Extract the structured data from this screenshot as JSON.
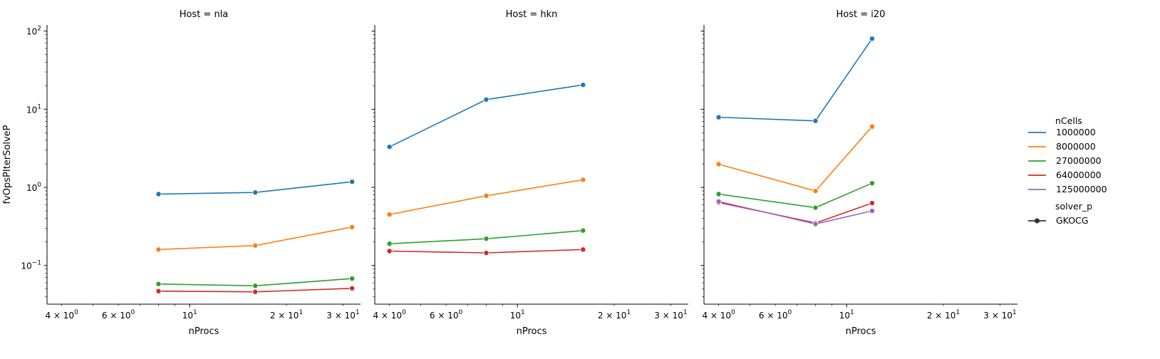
{
  "chart_data": {
    "type": "line",
    "ylabel": "fvOpsPIterSolveP",
    "xlabel": "nProcs",
    "xscale": "log",
    "yscale": "log",
    "xlim": [
      3.6,
      34
    ],
    "ylim": [
      0.032,
      120
    ],
    "x_ticks": [
      {
        "value": 4,
        "label": "4 × 10",
        "sup": "0"
      },
      {
        "value": 6,
        "label": "6 × 10",
        "sup": "0"
      },
      {
        "value": 10,
        "label": "10",
        "sup": "1"
      },
      {
        "value": 20,
        "label": "2 × 10",
        "sup": "1"
      },
      {
        "value": 30,
        "label": "3 × 10",
        "sup": "1"
      }
    ],
    "y_ticks": [
      {
        "value": 0.1,
        "label": "10",
        "sup": "−1"
      },
      {
        "value": 1,
        "label": "10",
        "sup": "0"
      },
      {
        "value": 10,
        "label": "10",
        "sup": "1"
      },
      {
        "value": 100,
        "label": "10",
        "sup": "2"
      }
    ],
    "grid": false,
    "legend_position": "right",
    "legend": {
      "hue_title": "nCells",
      "hue_entries": [
        {
          "name": "1000000",
          "color": "#1f77b4"
        },
        {
          "name": "8000000",
          "color": "#ff7f0e"
        },
        {
          "name": "27000000",
          "color": "#2ca02c"
        },
        {
          "name": "64000000",
          "color": "#d62728"
        },
        {
          "name": "125000000",
          "color": "#9467bd"
        }
      ],
      "style_title": "solver_p",
      "style_entries": [
        {
          "name": "GKOCG",
          "color": "#333333"
        }
      ]
    },
    "panels": [
      {
        "title": "Host = nla",
        "series": [
          {
            "name": "1000000",
            "x": [
              8,
              16,
              32
            ],
            "y": [
              0.82,
              0.86,
              1.18
            ]
          },
          {
            "name": "8000000",
            "x": [
              8,
              16,
              32
            ],
            "y": [
              0.16,
              0.18,
              0.31
            ]
          },
          {
            "name": "27000000",
            "x": [
              8,
              16,
              32
            ],
            "y": [
              0.058,
              0.055,
              0.068
            ]
          },
          {
            "name": "64000000",
            "x": [
              8,
              16,
              32
            ],
            "y": [
              0.047,
              0.046,
              0.051
            ]
          }
        ]
      },
      {
        "title": "Host = hkn",
        "series": [
          {
            "name": "1000000",
            "x": [
              4,
              8,
              16
            ],
            "y": [
              3.3,
              13.3,
              20.5
            ]
          },
          {
            "name": "8000000",
            "x": [
              4,
              8,
              16
            ],
            "y": [
              0.45,
              0.78,
              1.25
            ]
          },
          {
            "name": "27000000",
            "x": [
              4,
              8,
              16
            ],
            "y": [
              0.19,
              0.22,
              0.28
            ]
          },
          {
            "name": "64000000",
            "x": [
              4,
              8,
              16
            ],
            "y": [
              0.153,
              0.145,
              0.16
            ]
          }
        ]
      },
      {
        "title": "Host = i20",
        "series": [
          {
            "name": "1000000",
            "x": [
              4,
              8,
              12
            ],
            "y": [
              7.9,
              7.1,
              80
            ]
          },
          {
            "name": "8000000",
            "x": [
              4,
              8,
              12
            ],
            "y": [
              1.98,
              0.9,
              6.0
            ]
          },
          {
            "name": "27000000",
            "x": [
              4,
              8,
              12
            ],
            "y": [
              0.82,
              0.55,
              1.13
            ]
          },
          {
            "name": "64000000",
            "x": [
              4,
              8,
              12
            ],
            "y": [
              0.64,
              0.35,
              0.63
            ]
          },
          {
            "name": "125000000",
            "x": [
              4,
              8,
              12
            ],
            "y": [
              0.66,
              0.34,
              0.5
            ]
          }
        ]
      }
    ]
  }
}
